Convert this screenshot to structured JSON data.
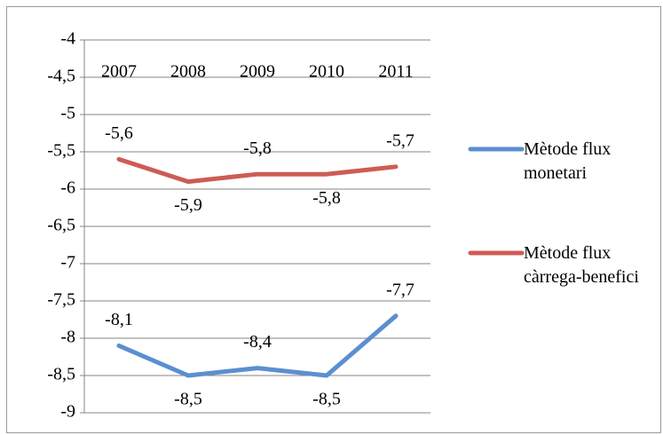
{
  "chart_data": {
    "type": "line",
    "categories": [
      "2007",
      "2008",
      "2009",
      "2010",
      "2011"
    ],
    "series": [
      {
        "name": "Mètode flux monetari",
        "color": "#5b8fd0",
        "values": [
          -8.1,
          -8.5,
          -8.4,
          -8.5,
          -7.7
        ],
        "value_labels": [
          "-8,1",
          "-8,5",
          "-8,4",
          "-8,5",
          "-7,7"
        ]
      },
      {
        "name": "Mètode flux càrrega-benefici",
        "color": "#cd5c55",
        "values": [
          -5.6,
          -5.9,
          -5.8,
          -5.8,
          -5.7
        ],
        "value_labels": [
          "-5,6",
          "-5,9",
          "-5,8",
          "-5,8",
          "-5,7"
        ]
      }
    ],
    "ylim": [
      -9,
      -4
    ],
    "yticks": [
      -9,
      {
        "value": -8.5,
        "label": "-8,5"
      },
      -8,
      {
        "value": -7.5,
        "label": "-7,5"
      },
      -7,
      {
        "value": -6.5,
        "label": "-6,5"
      },
      -6,
      {
        "value": -5.5,
        "label": "-5,5"
      },
      -5,
      {
        "value": -4.5,
        "label": "-4,5"
      },
      -4
    ],
    "grid": true,
    "legend": "right"
  }
}
